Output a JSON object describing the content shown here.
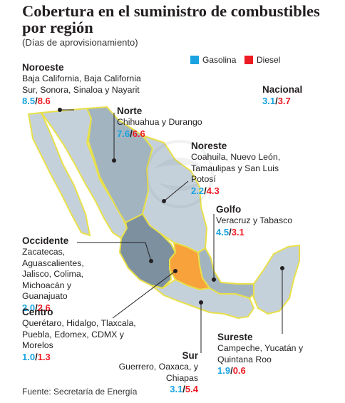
{
  "title": "Cobertura en el suministro de combustibles por región",
  "subtitle": "(Días de aprovisionamiento)",
  "legend": {
    "gasolina": "Gasolina",
    "diesel": "Diesel",
    "gasolina_color": "#1aa3e0",
    "diesel_color": "#ed1c24"
  },
  "regions": {
    "noroeste": {
      "name": "Noroeste",
      "states": "Baja California, Baja California Sur, Sonora, Sinaloa y Nayarit",
      "gasolina": "8.5",
      "diesel": "8.6"
    },
    "norte": {
      "name": "Norte",
      "states": "Chihuahua y Durango",
      "gasolina": "7.6",
      "diesel": "6.6"
    },
    "noreste": {
      "name": "Noreste",
      "states": "Coahuila, Nuevo León, Tamaulipas y San Luis Potosí",
      "gasolina": "2.2",
      "diesel": "4.3"
    },
    "nacional": {
      "name": "Nacional",
      "gasolina": "3.1",
      "diesel": "3.7"
    },
    "golfo": {
      "name": "Golfo",
      "states": "Veracruz y Tabasco",
      "gasolina": "4.5",
      "diesel": "3.1"
    },
    "occidente": {
      "name": "Occidente",
      "states": "Zacatecas, Aguascalientes, Jalisco, Colima, Michoacán y Guanajuato",
      "gasolina": "2.0",
      "diesel": "2.6"
    },
    "centro": {
      "name": "Centro",
      "states": "Querétaro, Hidalgo, Tlaxcala, Puebla, Edomex, CDMX y Morelos",
      "gasolina": "1.0",
      "diesel": "1.3"
    },
    "sureste": {
      "name": "Sureste",
      "states": "Campeche, Yucatán y Quintana Roo",
      "gasolina": "1.9",
      "diesel": "0.6"
    },
    "sur": {
      "name": "Sur",
      "states": "Guerrero, Oaxaca, y Chiapas",
      "gasolina": "3.1",
      "diesel": "5.4"
    }
  },
  "map_colors": {
    "light_region": "#c5d1da",
    "mid_region": "#a3b4c1",
    "dark_region": "#7c909f",
    "centro_highlight": "#f7a23b",
    "border_highlight": "#e8e04a"
  },
  "source": "Fuente: Secretaría de Energía"
}
